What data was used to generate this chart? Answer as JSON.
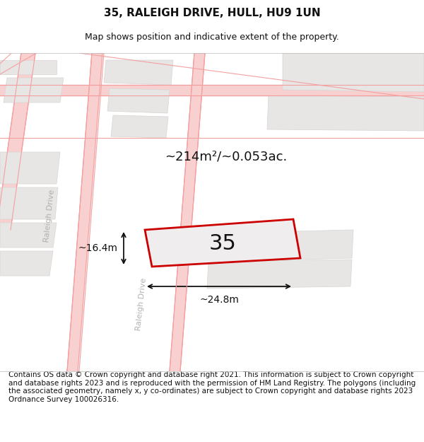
{
  "title": "35, RALEIGH DRIVE, HULL, HU9 1UN",
  "subtitle": "Map shows position and indicative extent of the property.",
  "footer": "Contains OS data © Crown copyright and database right 2021. This information is subject to Crown copyright and database rights 2023 and is reproduced with the permission of HM Land Registry. The polygons (including the associated geometry, namely x, y co-ordinates) are subject to Crown copyright and database rights 2023 Ordnance Survey 100026316.",
  "bg_color": "#f5f5f5",
  "map_bg": "#f0eeee",
  "title_fontsize": 11,
  "subtitle_fontsize": 9,
  "footer_fontsize": 7.5,
  "area_text": "~214m²/~0.053ac.",
  "plot_number": "35",
  "width_label": "~24.8m",
  "height_label": "~16.4m",
  "road_color": "#f4a0a0",
  "road_fill": "#f9d0d0",
  "block_fill": "#e8e5e5",
  "block_edge": "#d8d4d4",
  "plot_edge": "#cc0000",
  "plot_fill": "#f0edee",
  "dim_line_color": "#111111",
  "road_label_color": "#aaaaaa",
  "text_color": "#111111"
}
